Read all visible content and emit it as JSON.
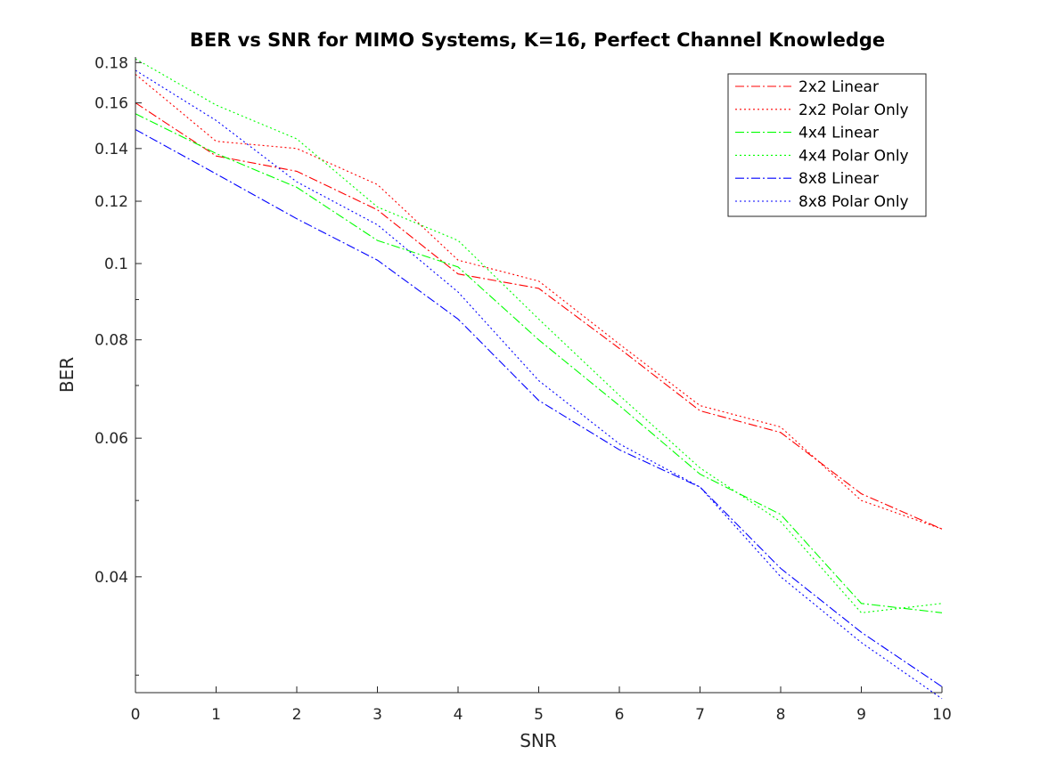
{
  "chart_data": {
    "type": "line",
    "title": "BER vs SNR for MIMO Systems, K=16, Perfect Channel Knowledge",
    "xlabel": "SNR",
    "ylabel": "BER",
    "xlim": [
      0,
      10
    ],
    "ylim": [
      0.0285,
      0.183
    ],
    "yscale": "log",
    "grid": false,
    "legend_position": "top-right",
    "x": [
      0,
      1,
      2,
      3,
      4,
      5,
      6,
      7,
      8,
      9,
      10
    ],
    "x_ticks": [
      "0",
      "1",
      "2",
      "3",
      "4",
      "5",
      "6",
      "7",
      "8",
      "9",
      "10"
    ],
    "y_ticks": [
      {
        "value": 0.04,
        "label": "0.04"
      },
      {
        "value": 0.06,
        "label": "0.06"
      },
      {
        "value": 0.08,
        "label": "0.08"
      },
      {
        "value": 0.1,
        "label": "0.1"
      },
      {
        "value": 0.12,
        "label": "0.12"
      },
      {
        "value": 0.14,
        "label": "0.14"
      },
      {
        "value": 0.16,
        "label": "0.16"
      },
      {
        "value": 0.18,
        "label": "0.18"
      }
    ],
    "y_minor_ticks": [
      0.03,
      0.05,
      0.07,
      0.09
    ],
    "series": [
      {
        "name": "2x2 Linear",
        "color": "#ff0000",
        "dash": "dashdot",
        "values": [
          0.16,
          0.137,
          0.131,
          0.117,
          0.097,
          0.093,
          0.078,
          0.065,
          0.061,
          0.051,
          0.046
        ]
      },
      {
        "name": "2x2 Polar Only",
        "color": "#ff0000",
        "dash": "dotted",
        "values": [
          0.174,
          0.143,
          0.14,
          0.126,
          0.101,
          0.095,
          0.079,
          0.066,
          0.062,
          0.05,
          0.046
        ]
      },
      {
        "name": "4x4 Linear",
        "color": "#00ff00",
        "dash": "dashdot",
        "values": [
          0.155,
          0.138,
          0.125,
          0.107,
          0.099,
          0.08,
          0.066,
          0.054,
          0.048,
          0.037,
          0.036
        ]
      },
      {
        "name": "4x4 Polar Only",
        "color": "#00ff00",
        "dash": "dotted",
        "values": [
          0.182,
          0.159,
          0.144,
          0.118,
          0.107,
          0.085,
          0.068,
          0.055,
          0.047,
          0.036,
          0.037
        ]
      },
      {
        "name": "8x8 Linear",
        "color": "#0000ff",
        "dash": "dashdot",
        "values": [
          0.148,
          0.13,
          0.114,
          0.101,
          0.085,
          0.067,
          0.058,
          0.052,
          0.041,
          0.034,
          0.029
        ]
      },
      {
        "name": "8x8 Polar Only",
        "color": "#0000ff",
        "dash": "dotted",
        "values": [
          0.176,
          0.152,
          0.127,
          0.112,
          0.092,
          0.071,
          0.059,
          0.052,
          0.04,
          0.033,
          0.028
        ]
      }
    ]
  }
}
